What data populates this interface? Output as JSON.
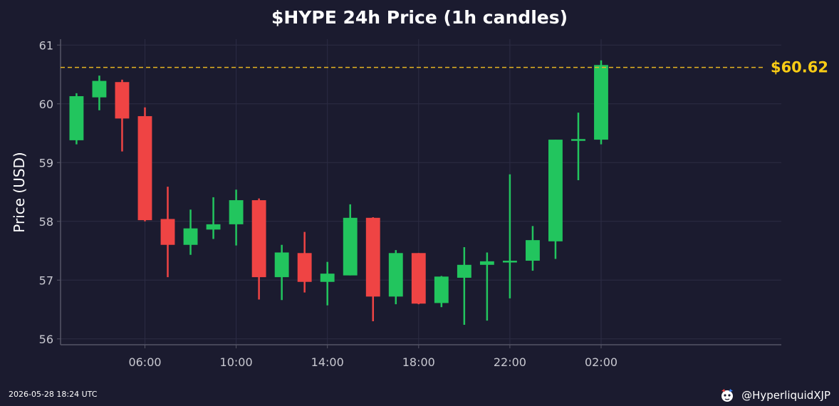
{
  "chart_data": {
    "type": "candlestick",
    "title": "$HYPE 24h Price (1h candles)",
    "ylabel": "Price (USD)",
    "ylim": [
      55.9,
      61.1
    ],
    "yticks": [
      56,
      57,
      58,
      59,
      60,
      61
    ],
    "x_range_hours": [
      2.3,
      33.9
    ],
    "xticks": [
      {
        "hour": 6,
        "label": "06:00"
      },
      {
        "hour": 10,
        "label": "10:00"
      },
      {
        "hour": 14,
        "label": "14:00"
      },
      {
        "hour": 18,
        "label": "18:00"
      },
      {
        "hour": 22,
        "label": "22:00"
      },
      {
        "hour": 26,
        "label": "02:00"
      }
    ],
    "grid": true,
    "colors": {
      "up": "#22c55e",
      "down": "#ef4444",
      "reference_line": "#e6b422",
      "price_label": "#facc15",
      "axes": "#555566",
      "tick_text": "#c8c8d0"
    },
    "candles": [
      {
        "hour": 3,
        "open": 59.38,
        "high": 60.18,
        "low": 59.31,
        "close": 60.13
      },
      {
        "hour": 4,
        "open": 60.11,
        "high": 60.48,
        "low": 59.89,
        "close": 60.39
      },
      {
        "hour": 5,
        "open": 60.37,
        "high": 60.41,
        "low": 59.19,
        "close": 59.75
      },
      {
        "hour": 6,
        "open": 59.79,
        "high": 59.94,
        "low": 58.0,
        "close": 58.02
      },
      {
        "hour": 7,
        "open": 58.04,
        "high": 58.59,
        "low": 57.05,
        "close": 57.6
      },
      {
        "hour": 8,
        "open": 57.6,
        "high": 58.2,
        "low": 57.43,
        "close": 57.88
      },
      {
        "hour": 9,
        "open": 57.86,
        "high": 58.41,
        "low": 57.7,
        "close": 57.95
      },
      {
        "hour": 10,
        "open": 57.95,
        "high": 58.54,
        "low": 57.59,
        "close": 58.36
      },
      {
        "hour": 11,
        "open": 58.36,
        "high": 58.39,
        "low": 56.67,
        "close": 57.05
      },
      {
        "hour": 12,
        "open": 57.05,
        "high": 57.6,
        "low": 56.66,
        "close": 57.47
      },
      {
        "hour": 13,
        "open": 57.46,
        "high": 57.82,
        "low": 56.79,
        "close": 56.97
      },
      {
        "hour": 14,
        "open": 56.97,
        "high": 57.31,
        "low": 56.57,
        "close": 57.11
      },
      {
        "hour": 15,
        "open": 57.08,
        "high": 58.29,
        "low": 57.08,
        "close": 58.06
      },
      {
        "hour": 16,
        "open": 58.06,
        "high": 58.07,
        "low": 56.3,
        "close": 56.72
      },
      {
        "hour": 17,
        "open": 56.72,
        "high": 57.51,
        "low": 56.59,
        "close": 57.46
      },
      {
        "hour": 18,
        "open": 57.46,
        "high": 57.46,
        "low": 56.59,
        "close": 56.6
      },
      {
        "hour": 19,
        "open": 56.61,
        "high": 57.07,
        "low": 56.54,
        "close": 57.06
      },
      {
        "hour": 20,
        "open": 57.04,
        "high": 57.56,
        "low": 56.24,
        "close": 57.26
      },
      {
        "hour": 21,
        "open": 57.26,
        "high": 57.47,
        "low": 56.31,
        "close": 57.32
      },
      {
        "hour": 22,
        "open": 57.31,
        "high": 58.8,
        "low": 56.69,
        "close": 57.33
      },
      {
        "hour": 23,
        "open": 57.33,
        "high": 57.92,
        "low": 57.16,
        "close": 57.68
      },
      {
        "hour": 24,
        "open": 57.66,
        "high": 59.39,
        "low": 57.36,
        "close": 59.39
      },
      {
        "hour": 25,
        "open": 59.38,
        "high": 59.85,
        "low": 58.7,
        "close": 59.4
      },
      {
        "hour": 26,
        "open": 59.39,
        "high": 60.74,
        "low": 59.31,
        "close": 60.66
      }
    ],
    "reference_line": {
      "value": 60.62,
      "label": "$60.62"
    }
  },
  "footer": {
    "timestamp": "2026-05-28 18:24 UTC",
    "handle": "@HyperliquidXJP",
    "logo_icon": "mascot-logo-icon"
  }
}
